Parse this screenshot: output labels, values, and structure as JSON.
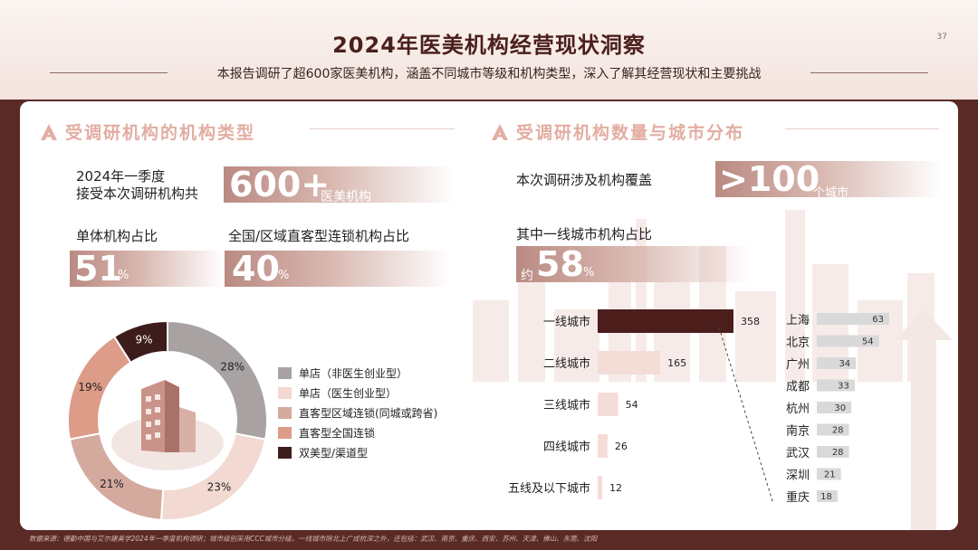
{
  "header": {
    "title": "2024年医美机构经营现状洞察",
    "page_number": "37",
    "subtitle": "本报告调研了超600家医美机构，涵盖不同城市等级和机构类型，深入了解其经营现状和主要挑战"
  },
  "left": {
    "section_title": "受调研机构的机构类型",
    "total_label_1": "2024年一季度",
    "total_label_2": "接受本次调研机构共",
    "total_value": "600+",
    "total_unit": "医美机构",
    "single_label": "单体机构占比",
    "single_value": "51",
    "single_unit": "%",
    "chain_label": "全国/区域直客型连锁机构占比",
    "chain_value": "40",
    "chain_unit": "%"
  },
  "right": {
    "section_title": "受调研机构数量与城市分布",
    "coverage_label": "本次调研涉及机构覆盖",
    "coverage_value": ">100",
    "coverage_unit": "个城市",
    "tier1_label": "其中一线城市机构占比",
    "tier1_prefix": "约",
    "tier1_value": "58",
    "tier1_unit": "%"
  },
  "colors": {
    "accent_dark": "#4a1f1c",
    "accent_light": "#e3ada2",
    "bar_dark": "#4b1e1c",
    "bar_light": "#f4ddd7",
    "sub_bar": "#d9d9d9"
  },
  "chart_data": [
    {
      "type": "pie",
      "variant": "donut",
      "categories": [
        "单店（非医生创业型）",
        "单店（医生创业型）",
        "直客型区域连锁(同城或跨省)",
        "直客型全国连锁",
        "双美型/渠道型"
      ],
      "values": [
        28,
        23,
        21,
        19,
        9
      ],
      "value_labels": [
        "28%",
        "23%",
        "21%",
        "19%",
        "9%"
      ],
      "colors": [
        "#a8a3a2",
        "#f2d9d2",
        "#d4aa9f",
        "#dc9c88",
        "#3d1d1c"
      ],
      "legend_position": "right"
    },
    {
      "type": "bar",
      "orientation": "horizontal",
      "categories": [
        "一线城市",
        "二线城市",
        "三线城市",
        "四线城市",
        "五线及以下城市"
      ],
      "values": [
        358,
        165,
        54,
        26,
        12
      ],
      "xlim": [
        0,
        358
      ],
      "grid": false
    },
    {
      "type": "bar",
      "orientation": "horizontal",
      "categories": [
        "上海",
        "北京",
        "广州",
        "成都",
        "杭州",
        "南京",
        "武汉",
        "深圳",
        "重庆"
      ],
      "values": [
        63,
        54,
        34,
        33,
        30,
        28,
        28,
        21,
        18
      ],
      "xlim": [
        0,
        63
      ],
      "grid": false
    }
  ],
  "footer": {
    "source": "数据来源：德勤中国与艾尔建美学2024年一季度机构调研；城市级别采用CCC城市分级，一线城市除北上广成杭深之外，还包括：武汉、南京、重庆、西安、苏州、天津、佛山、东莞、沈阳"
  }
}
